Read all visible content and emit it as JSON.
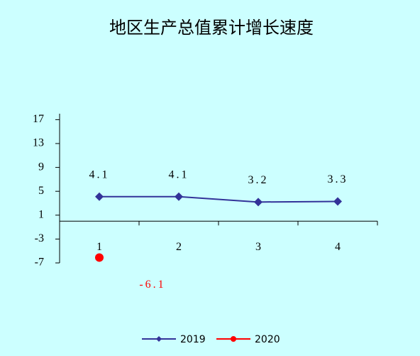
{
  "chart_data": {
    "type": "line",
    "title": "地区生产总值累计增长速度",
    "categories": [
      "1",
      "2",
      "3",
      "4"
    ],
    "series": [
      {
        "name": "2019",
        "color": "#333399",
        "marker": "diamond",
        "values": [
          4.1,
          4.1,
          3.2,
          3.3
        ]
      },
      {
        "name": "2020",
        "color": "#ff0000",
        "marker": "circle",
        "values": [
          -6.1,
          null,
          null,
          null
        ]
      }
    ],
    "ylim": [
      -7,
      18
    ],
    "yticks": [
      -7,
      -3,
      1,
      5,
      9,
      13,
      17
    ],
    "grid": false,
    "legend": "bottom"
  }
}
